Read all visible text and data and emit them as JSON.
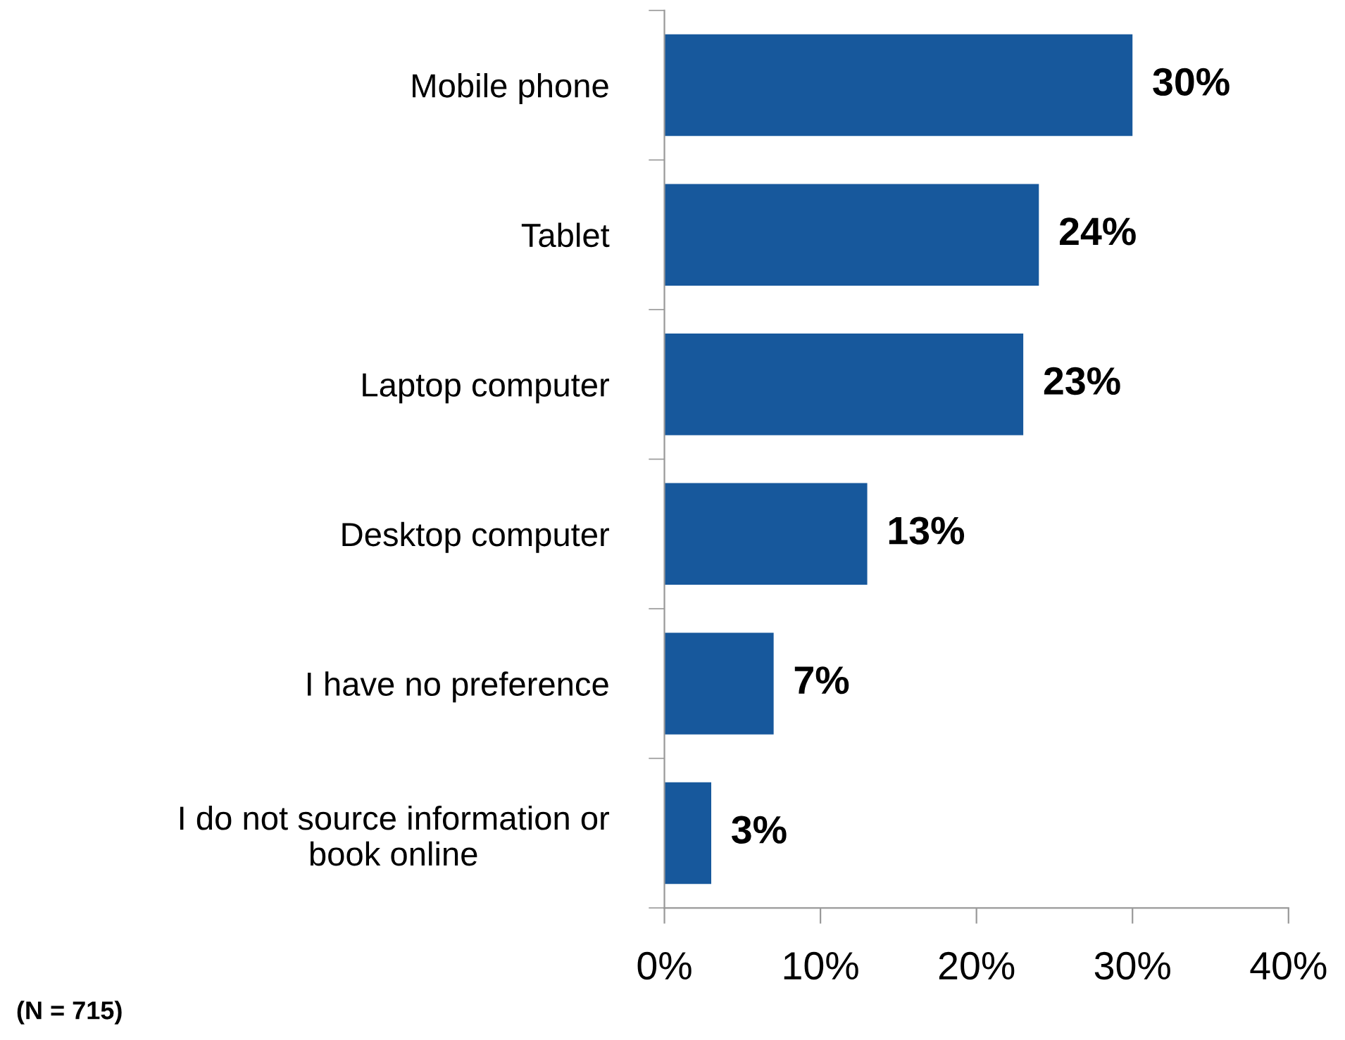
{
  "chart_data": {
    "type": "bar",
    "orientation": "horizontal",
    "categories": [
      "Mobile phone",
      "Tablet",
      "Laptop computer",
      "Desktop computer",
      "I have no preference",
      "I do not source information or\nbook online"
    ],
    "values": [
      30,
      24,
      23,
      13,
      7,
      3
    ],
    "value_labels": [
      "30%",
      "24%",
      "23%",
      "13%",
      "7%",
      "3%"
    ],
    "color": "#17589c",
    "xlim": [
      0,
      40
    ],
    "xticks": [
      {
        "value": 0,
        "label": "0%"
      },
      {
        "value": 10,
        "label": "10%"
      },
      {
        "value": 20,
        "label": "20%"
      },
      {
        "value": 30,
        "label": "30%"
      },
      {
        "value": 40,
        "label": "40%"
      }
    ],
    "grid": false,
    "legend": false,
    "annotations": [
      "(N = 715)"
    ]
  }
}
